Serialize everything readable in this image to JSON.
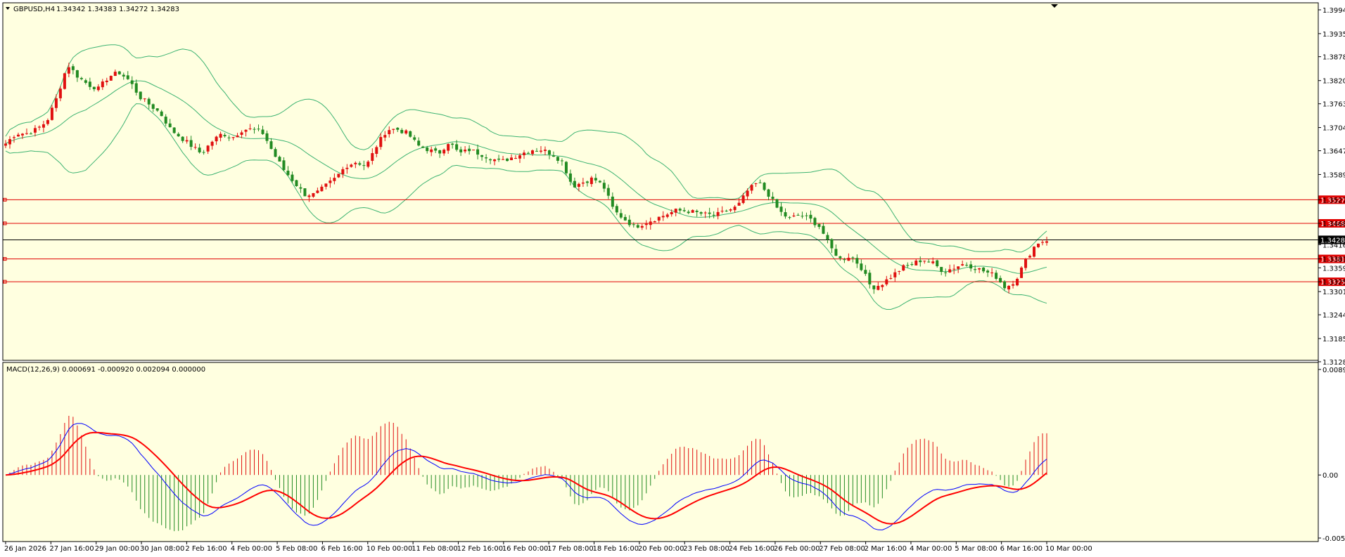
{
  "main_panel": {
    "symbol_label": "GBPUSD,H4",
    "ohlc_text": "1.34342 1.34383 1.34272 1.34283",
    "price_ticks": [
      "1.39940",
      "1.39355",
      "1.38788",
      "1.38200",
      "1.37630",
      "1.37045",
      "1.36475",
      "1.35890",
      "1.35270",
      "1.34689",
      "1.34165",
      "1.33814",
      "1.33595",
      "1.33252",
      "1.33010",
      "1.32440",
      "1.31855",
      "1.31285"
    ],
    "horizontal_levels": [
      {
        "price": "1.35270",
        "color": "#e00000"
      },
      {
        "price": "1.34689",
        "color": "#e00000"
      },
      {
        "price": "1.33814",
        "color": "#e00000"
      },
      {
        "price": "1.33252",
        "color": "#e00000"
      }
    ],
    "current_price": "1.34283"
  },
  "macd_panel": {
    "label": "MACD(12,26,9) 0.000691 -0.000920 0.002094 0.000000",
    "ticks": [
      "0.008935",
      "0.00",
      "-0.00534"
    ]
  },
  "time_axis": [
    "26 Jan 2026",
    "27 Jan 16:00",
    "29 Jan 00:00",
    "30 Jan 08:00",
    "2 Feb 16:00",
    "4 Feb 00:00",
    "5 Feb 08:00",
    "6 Feb 16:00",
    "10 Feb 00:00",
    "11 Feb 08:00",
    "12 Feb 16:00",
    "16 Feb 00:00",
    "17 Feb 08:00",
    "18 Feb 16:00",
    "20 Feb 00:00",
    "23 Feb 08:00",
    "24 Feb 16:00",
    "26 Feb 00:00",
    "27 Feb 08:00",
    "2 Mar 16:00",
    "4 Mar 00:00",
    "5 Mar 08:00",
    "6 Mar 16:00",
    "10 Mar 00:00"
  ],
  "colors": {
    "background": "#ffffe0",
    "bull": "#e01010",
    "bear": "#228b22",
    "bands": "#3cb371",
    "level": "#e00000",
    "macd_line": "#0000ff",
    "signal_line": "#ff0000"
  },
  "chart_data": {
    "type": "candlestick",
    "symbol": "GBPUSD",
    "timeframe": "H4",
    "ylim": [
      1.31285,
      1.3994
    ],
    "close_path": [
      1.3665,
      1.369,
      1.369,
      1.37,
      1.372,
      1.378,
      1.386,
      1.383,
      1.381,
      1.38,
      1.383,
      1.384,
      1.382,
      1.378,
      1.376,
      1.374,
      1.37,
      1.368,
      1.366,
      1.364,
      1.367,
      1.369,
      1.368,
      1.37,
      1.37,
      1.369,
      1.364,
      1.36,
      1.357,
      1.354,
      1.354,
      1.356,
      1.358,
      1.361,
      1.362,
      1.361,
      1.366,
      1.37,
      1.37,
      1.369,
      1.366,
      1.365,
      1.364,
      1.367,
      1.364,
      1.365,
      1.364,
      1.363,
      1.362,
      1.363,
      1.364,
      1.365,
      1.365,
      1.364,
      1.362,
      1.356,
      1.357,
      1.358,
      1.356,
      1.35,
      1.348,
      1.346,
      1.347,
      1.348,
      1.349,
      1.35,
      1.35,
      1.3495,
      1.349,
      1.349,
      1.35,
      1.351,
      1.355,
      1.357,
      1.354,
      1.35,
      1.348,
      1.349,
      1.348,
      1.346,
      1.341,
      1.338,
      1.339,
      1.336,
      1.331,
      1.332,
      1.334,
      1.336,
      1.337,
      1.338,
      1.337,
      1.335,
      1.336,
      1.337,
      1.336,
      1.335,
      1.334,
      1.331,
      1.333,
      1.338,
      1.342,
      1.3428
    ],
    "bands_width": 0.006,
    "macd_ylim": [
      -0.00534,
      0.008935
    ]
  }
}
